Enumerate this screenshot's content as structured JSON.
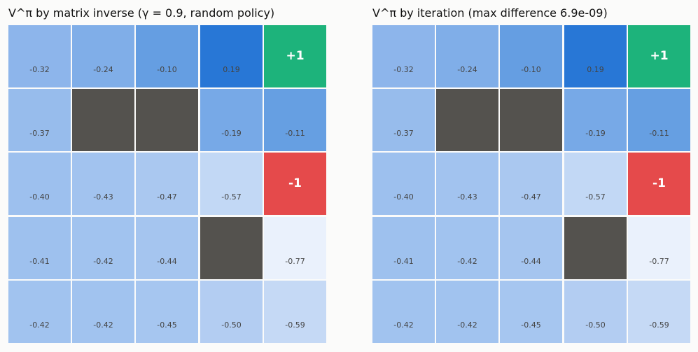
{
  "colors": {
    "wall": "#54524e",
    "goal_positive": "#1db37b",
    "goal_negative": "#e54a4b",
    "value_high": "#2877d6",
    "value_low": "#eaf1fc"
  },
  "panels": [
    {
      "title": "V^π by matrix inverse (γ = 0.9, random policy)",
      "rows": [
        [
          {
            "v": "-0.32",
            "c": "#8db5eb"
          },
          {
            "v": "-0.24",
            "c": "#80aee8"
          },
          {
            "v": "-0.10",
            "c": "#659ee2"
          },
          {
            "v": "0.19",
            "c": "#2877d6"
          },
          {
            "r": "+1",
            "c": "#1db37b"
          }
        ],
        [
          {
            "v": "-0.37",
            "c": "#97bcec"
          },
          {
            "wall": true,
            "c": "#54524e"
          },
          {
            "wall": true,
            "c": "#54524e"
          },
          {
            "v": "-0.19",
            "c": "#77a9e7"
          },
          {
            "v": "-0.11",
            "c": "#669fe2"
          }
        ],
        [
          {
            "v": "-0.40",
            "c": "#9dc0ee"
          },
          {
            "v": "-0.43",
            "c": "#a2c3ef"
          },
          {
            "v": "-0.47",
            "c": "#aac8f0"
          },
          {
            "v": "-0.57",
            "c": "#c2d8f5"
          },
          {
            "r": "-1",
            "c": "#e54a4b"
          }
        ],
        [
          {
            "v": "-0.41",
            "c": "#9ec1ee"
          },
          {
            "v": "-0.42",
            "c": "#a1c3ef"
          },
          {
            "v": "-0.44",
            "c": "#a5c5ef"
          },
          {
            "wall": true,
            "c": "#54524e"
          },
          {
            "v": "-0.77",
            "c": "#eaf1fc"
          }
        ],
        [
          {
            "v": "-0.42",
            "c": "#a1c3ef"
          },
          {
            "v": "-0.42",
            "c": "#a1c3ef"
          },
          {
            "v": "-0.45",
            "c": "#a6c6f0"
          },
          {
            "v": "-0.50",
            "c": "#b3cdf2"
          },
          {
            "v": "-0.59",
            "c": "#c5d9f5"
          }
        ]
      ]
    },
    {
      "title": "V^π by iteration (max difference 6.9e-09)",
      "rows": [
        [
          {
            "v": "-0.32",
            "c": "#8db5eb"
          },
          {
            "v": "-0.24",
            "c": "#80aee8"
          },
          {
            "v": "-0.10",
            "c": "#659ee2"
          },
          {
            "v": "0.19",
            "c": "#2877d6"
          },
          {
            "r": "+1",
            "c": "#1db37b"
          }
        ],
        [
          {
            "v": "-0.37",
            "c": "#97bcec"
          },
          {
            "wall": true,
            "c": "#54524e"
          },
          {
            "wall": true,
            "c": "#54524e"
          },
          {
            "v": "-0.19",
            "c": "#77a9e7"
          },
          {
            "v": "-0.11",
            "c": "#669fe2"
          }
        ],
        [
          {
            "v": "-0.40",
            "c": "#9dc0ee"
          },
          {
            "v": "-0.43",
            "c": "#a2c3ef"
          },
          {
            "v": "-0.47",
            "c": "#aac8f0"
          },
          {
            "v": "-0.57",
            "c": "#c2d8f5"
          },
          {
            "r": "-1",
            "c": "#e54a4b"
          }
        ],
        [
          {
            "v": "-0.41",
            "c": "#9ec1ee"
          },
          {
            "v": "-0.42",
            "c": "#a1c3ef"
          },
          {
            "v": "-0.44",
            "c": "#a5c5ef"
          },
          {
            "wall": true,
            "c": "#54524e"
          },
          {
            "v": "-0.77",
            "c": "#eaf1fc"
          }
        ],
        [
          {
            "v": "-0.42",
            "c": "#a1c3ef"
          },
          {
            "v": "-0.42",
            "c": "#a1c3ef"
          },
          {
            "v": "-0.45",
            "c": "#a6c6f0"
          },
          {
            "v": "-0.50",
            "c": "#b3cdf2"
          },
          {
            "v": "-0.59",
            "c": "#c5d9f5"
          }
        ]
      ]
    }
  ]
}
